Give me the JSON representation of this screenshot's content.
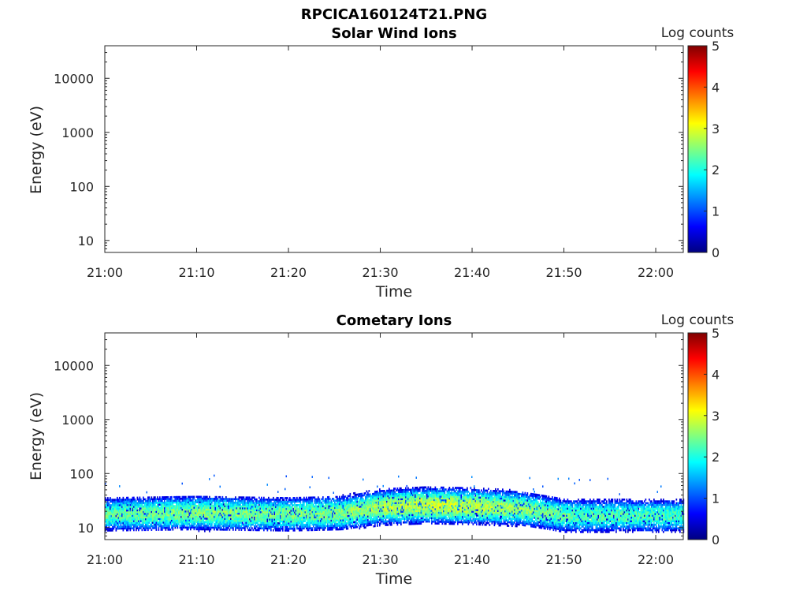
{
  "figure": {
    "main_title": "RPCICA160124T21.PNG"
  },
  "colorbar": {
    "label": "Log counts",
    "ticks": [
      "0",
      "1",
      "2",
      "3",
      "4",
      "5"
    ],
    "colormap": [
      "#000080",
      "#0000ff",
      "#0080ff",
      "#00ffff",
      "#80ff80",
      "#ffff00",
      "#ff8000",
      "#ff0000",
      "#800000"
    ]
  },
  "chart_data": [
    {
      "type": "heatmap",
      "title": "Solar Wind Ions",
      "xlabel": "Time",
      "ylabel": "Energy (eV)",
      "x_ticks": [
        "21:00",
        "21:10",
        "21:20",
        "21:30",
        "21:40",
        "21:50",
        "22:00"
      ],
      "y_ticks": [
        "10",
        "100",
        "1000",
        "10000"
      ],
      "y_scale": "log",
      "ylim": [
        6,
        40000
      ],
      "xlim": [
        "21:00",
        "22:03"
      ],
      "clim": [
        0,
        5
      ],
      "data": []
    },
    {
      "type": "heatmap",
      "title": "Cometary Ions",
      "xlabel": "Time",
      "ylabel": "Energy (eV)",
      "x_ticks": [
        "21:00",
        "21:10",
        "21:20",
        "21:30",
        "21:40",
        "21:50",
        "22:00"
      ],
      "y_ticks": [
        "10",
        "100",
        "1000",
        "10000"
      ],
      "y_scale": "log",
      "ylim": [
        6,
        40000
      ],
      "xlim": [
        "21:00",
        "22:03"
      ],
      "clim": [
        0,
        5
      ],
      "band": {
        "time": [
          "21:00",
          "21:10",
          "21:20",
          "21:26",
          "21:30",
          "21:35",
          "21:40",
          "21:45",
          "21:50",
          "22:00",
          "22:03"
        ],
        "center_ev": [
          17,
          18,
          17,
          18,
          23,
          25,
          24,
          22,
          16,
          16,
          16
        ],
        "peak_log_counts": [
          2.3,
          2.5,
          2.4,
          2.5,
          2.7,
          2.9,
          2.8,
          2.6,
          2.3,
          2.2,
          2.2
        ]
      }
    }
  ]
}
